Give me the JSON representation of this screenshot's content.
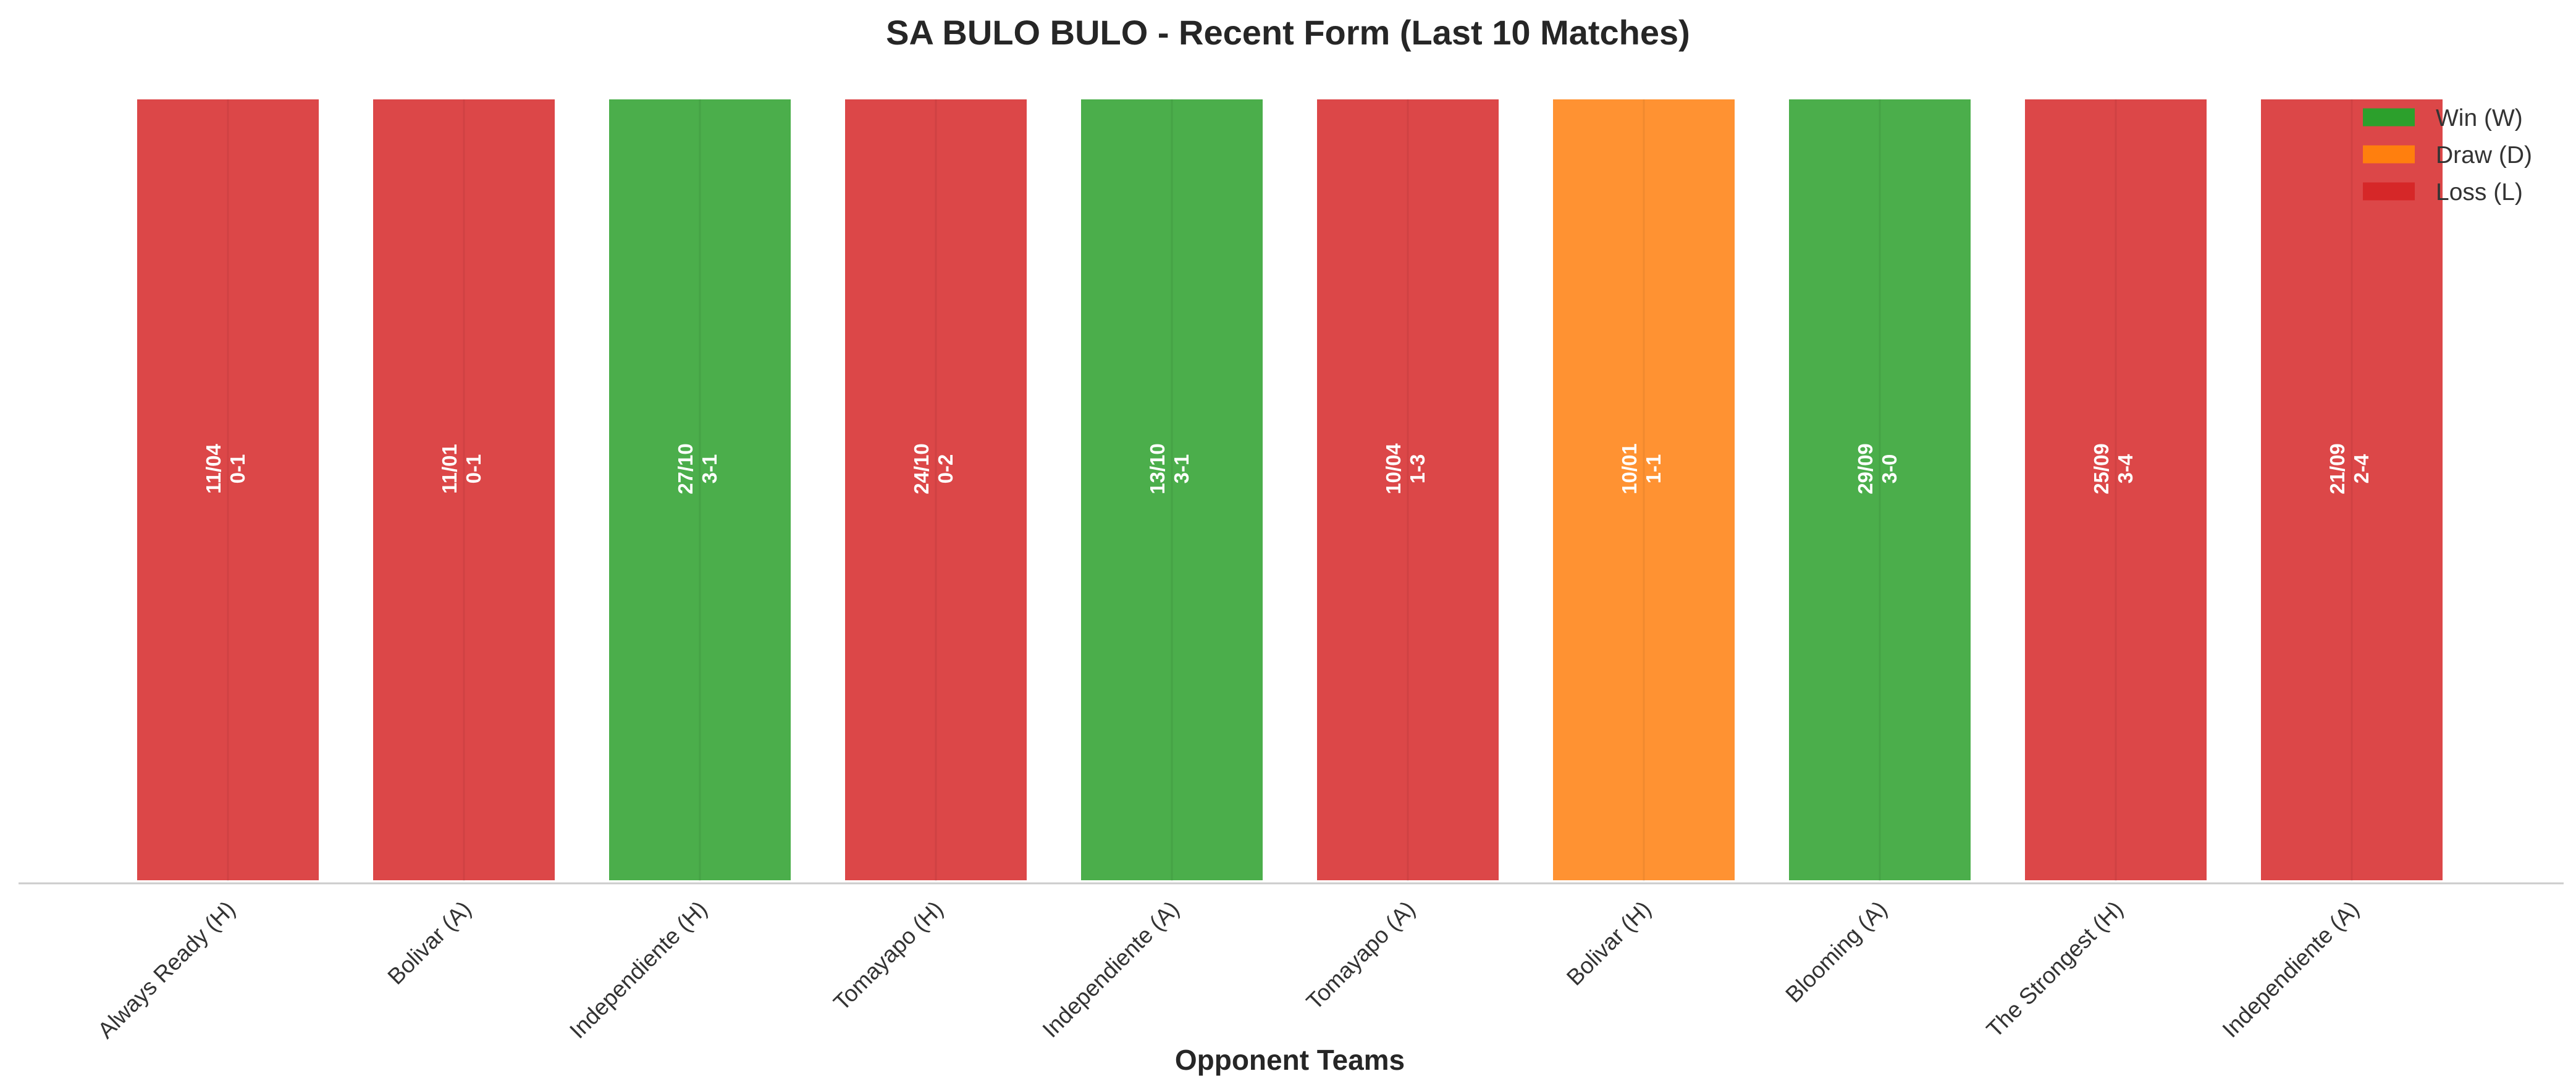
{
  "chart_data": {
    "type": "bar",
    "title": "SA BULO BULO - Recent Form (Last 10 Matches)",
    "xlabel": "Opponent Teams",
    "ylabel": "",
    "ylim": [
      0,
      1
    ],
    "grid": false,
    "legend_position": "top-right",
    "colors": {
      "W": "#2ca02c",
      "D": "#ff7f0e",
      "L": "#d62728"
    },
    "legend": [
      {
        "key": "W",
        "label": "Win (W)"
      },
      {
        "key": "D",
        "label": "Draw (D)"
      },
      {
        "key": "L",
        "label": "Loss (L)"
      }
    ],
    "categories": [
      "Always Ready (H)",
      "Bolivar (A)",
      "Independiente (H)",
      "Tomayapo (H)",
      "Independiente (A)",
      "Tomayapo (A)",
      "Bolivar (H)",
      "Blooming (A)",
      "The Strongest (H)",
      "Independiente (A)"
    ],
    "values": [
      1,
      1,
      1,
      1,
      1,
      1,
      1,
      1,
      1,
      1
    ],
    "results": [
      "L",
      "L",
      "W",
      "L",
      "W",
      "L",
      "D",
      "W",
      "L",
      "L"
    ],
    "dates": [
      "11/04",
      "11/01",
      "27/10",
      "24/10",
      "13/10",
      "10/04",
      "10/01",
      "29/09",
      "25/09",
      "21/09"
    ],
    "scores": [
      "0-1",
      "0-1",
      "3-1",
      "0-2",
      "3-1",
      "1-3",
      "1-1",
      "3-0",
      "3-4",
      "2-4"
    ]
  }
}
